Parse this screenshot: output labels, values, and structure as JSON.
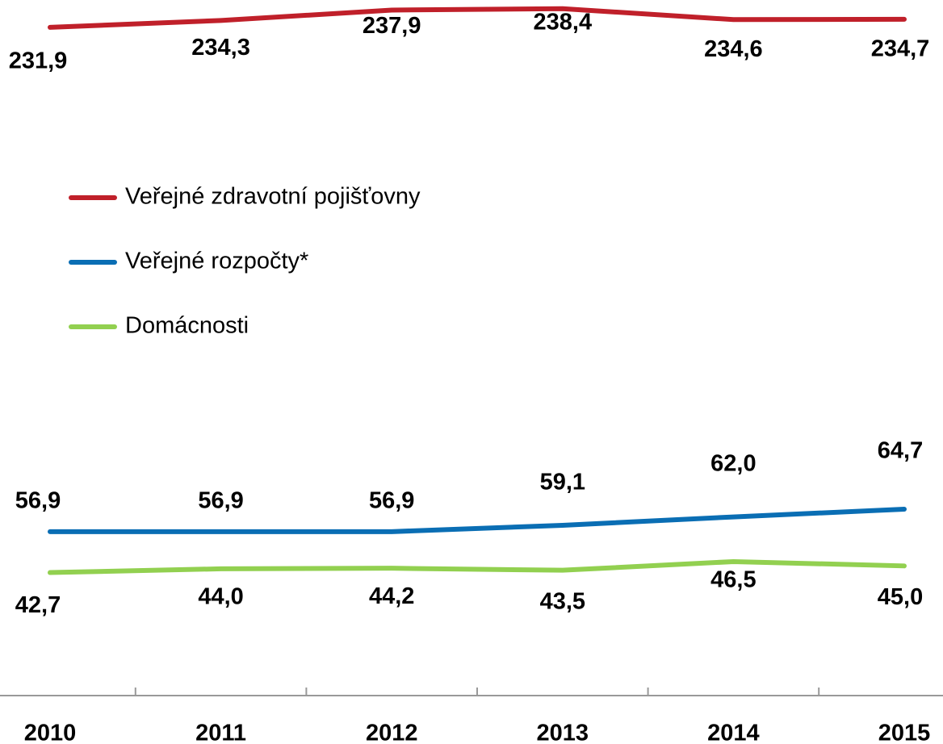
{
  "chart_data": {
    "type": "line",
    "categories": [
      "2010",
      "2011",
      "2012",
      "2013",
      "2014",
      "2015"
    ],
    "series": [
      {
        "name": "Veřejné zdravotní pojišťovny",
        "color": "#c0202a",
        "values": [
          231.9,
          234.3,
          237.9,
          238.4,
          234.6,
          234.7
        ],
        "value_labels": [
          "231,9",
          "234,3",
          "237,9",
          "238,4",
          "234,6",
          "234,7"
        ]
      },
      {
        "name": "Veřejné rozpočty*",
        "color": "#0a6eb4",
        "values": [
          56.9,
          56.9,
          56.9,
          59.1,
          62.0,
          64.7
        ],
        "value_labels": [
          "56,9",
          "56,9",
          "56,9",
          "59,1",
          "62,0",
          "64,7"
        ]
      },
      {
        "name": "Domácnosti",
        "color": "#92d050",
        "values": [
          42.7,
          44.0,
          44.2,
          43.5,
          46.5,
          45.0
        ],
        "value_labels": [
          "42,7",
          "44,0",
          "44,2",
          "43,5",
          "46,5",
          "45,0"
        ]
      }
    ],
    "ylim": [
      0,
      240
    ]
  }
}
